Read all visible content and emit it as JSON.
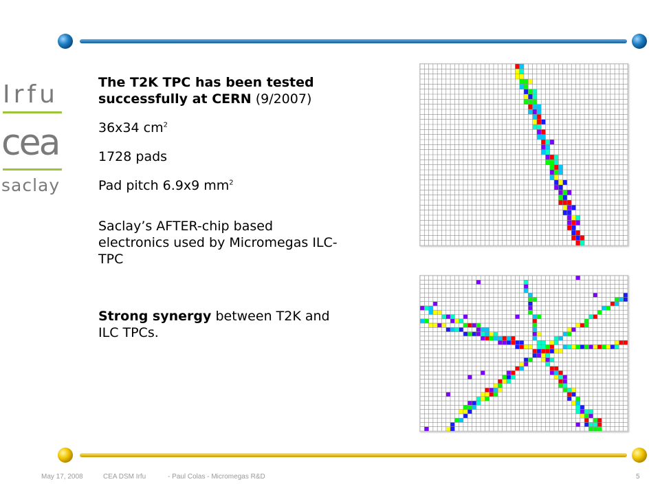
{
  "slide": {
    "heading_bold": "The T2K TPC has been tested successfully at CERN",
    "heading_rest": " (9/2007)",
    "size_text": "36x34 cm",
    "size_sup": "2",
    "pads_text": "1728 pads",
    "pitch_text": "Pad pitch 6.9x9 mm",
    "pitch_sup": "2",
    "electronics_text": "Saclay’s AFTER-chip based electronics used by Micromegas ILC-TPC",
    "synergy_bold": "Strong synergy",
    "synergy_rest": " between T2K and ILC TPCs."
  },
  "logo": {
    "line1": "Irfu",
    "line2": "cea",
    "line3": "saclay"
  },
  "footer": {
    "date": "May 17, 2008",
    "org": "CEA DSM Irfu",
    "title": "- Paul Colas -  Micromegas R&D",
    "page": "5"
  },
  "colors": {
    "rule_blue": "#1f7fc4",
    "rule_yellow": "#f2c600",
    "logo_gray": "#7a7a7a",
    "logo_green": "#9bc43b",
    "hit_colors": [
      "#1a1aff",
      "#7f00ff",
      "#00c8ff",
      "#00ffc8",
      "#00ff00",
      "#ffff00",
      "#ff0000"
    ]
  }
}
